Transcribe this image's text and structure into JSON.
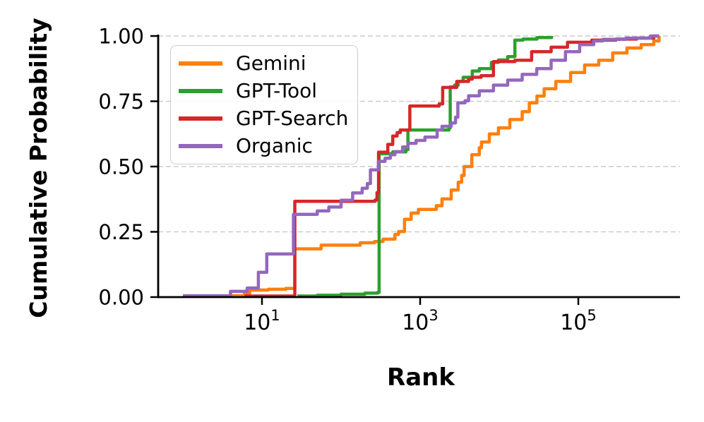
{
  "figure": {
    "background": "#ffffff"
  },
  "axes": {
    "xlabel": "Rank",
    "ylabel": "Cumulative Probability",
    "x_scale": "log",
    "y_ticks": [
      {
        "label": "0.00",
        "value": 0.0
      },
      {
        "label": "0.25",
        "value": 0.25
      },
      {
        "label": "0.50",
        "value": 0.5
      },
      {
        "label": "0.75",
        "value": 0.75
      },
      {
        "label": "1.00",
        "value": 1.0
      }
    ],
    "x_ticks": [
      {
        "base": "10",
        "exp": "1",
        "value": 10
      },
      {
        "base": "10",
        "exp": "3",
        "value": 1000
      },
      {
        "base": "10",
        "exp": "5",
        "value": 100000
      }
    ],
    "grid_color": "#cccccc",
    "spine_color": "#000000"
  },
  "legend": {
    "items": [
      {
        "label": "Gemini",
        "color": "#ff7f0e"
      },
      {
        "label": "GPT-Tool",
        "color": "#2ca02c"
      },
      {
        "label": "GPT-Search",
        "color": "#d62728"
      },
      {
        "label": "Organic",
        "color": "#9467bd"
      }
    ]
  },
  "chart_data": {
    "type": "line",
    "variant": "cdf-step",
    "title": "",
    "xlabel": "Rank",
    "ylabel": "Cumulative Probability",
    "x_scale": "log10",
    "x_range": [
      0.48,
      1900000
    ],
    "y_range": [
      0,
      1
    ],
    "grid": "horizontal-dashed",
    "legend_position": "upper-left",
    "series": [
      {
        "name": "Gemini",
        "color": "#ff7f0e",
        "points": [
          [
            4,
            0.005
          ],
          [
            6,
            0.014
          ],
          [
            7,
            0.027
          ],
          [
            12,
            0.03
          ],
          [
            20,
            0.033
          ],
          [
            26,
            0.185
          ],
          [
            56,
            0.199
          ],
          [
            175,
            0.208
          ],
          [
            265,
            0.213
          ],
          [
            340,
            0.222
          ],
          [
            480,
            0.24
          ],
          [
            533,
            0.251
          ],
          [
            635,
            0.298
          ],
          [
            770,
            0.322
          ],
          [
            950,
            0.336
          ],
          [
            1600,
            0.35
          ],
          [
            1890,
            0.376
          ],
          [
            2470,
            0.41
          ],
          [
            3030,
            0.44
          ],
          [
            3350,
            0.466
          ],
          [
            3600,
            0.5
          ],
          [
            4500,
            0.545
          ],
          [
            5600,
            0.572
          ],
          [
            5960,
            0.594
          ],
          [
            7500,
            0.625
          ],
          [
            9770,
            0.648
          ],
          [
            13600,
            0.68
          ],
          [
            19500,
            0.71
          ],
          [
            24000,
            0.744
          ],
          [
            30000,
            0.77
          ],
          [
            37000,
            0.798
          ],
          [
            52000,
            0.826
          ],
          [
            80000,
            0.86
          ],
          [
            120000,
            0.889
          ],
          [
            181000,
            0.907
          ],
          [
            272000,
            0.935
          ],
          [
            412000,
            0.954
          ],
          [
            624000,
            0.967
          ],
          [
            900000,
            0.981
          ],
          [
            1050000,
            1.0
          ]
        ]
      },
      {
        "name": "GPT-Tool",
        "color": "#2ca02c",
        "points": [
          [
            28,
            0.004
          ],
          [
            50,
            0.007
          ],
          [
            100,
            0.011
          ],
          [
            200,
            0.015
          ],
          [
            290,
            0.018
          ],
          [
            303,
            0.549
          ],
          [
            450,
            0.556
          ],
          [
            660,
            0.565
          ],
          [
            700,
            0.64
          ],
          [
            2320,
            0.648
          ],
          [
            2400,
            0.805
          ],
          [
            2730,
            0.812
          ],
          [
            3030,
            0.826
          ],
          [
            3500,
            0.842
          ],
          [
            4560,
            0.866
          ],
          [
            5600,
            0.875
          ],
          [
            7960,
            0.899
          ],
          [
            9770,
            0.908
          ],
          [
            12800,
            0.921
          ],
          [
            15800,
            0.984
          ],
          [
            20000,
            0.988
          ],
          [
            30000,
            0.994
          ],
          [
            46000,
            1.0
          ]
        ]
      },
      {
        "name": "GPT-Search",
        "color": "#d62728",
        "points": [
          [
            6,
            0.004
          ],
          [
            26,
            0.367
          ],
          [
            270,
            0.372
          ],
          [
            285,
            0.4
          ],
          [
            298,
            0.555
          ],
          [
            390,
            0.585
          ],
          [
            450,
            0.617
          ],
          [
            512,
            0.63
          ],
          [
            560,
            0.64
          ],
          [
            730,
            0.641
          ],
          [
            740,
            0.732
          ],
          [
            1740,
            0.74
          ],
          [
            1925,
            0.803
          ],
          [
            2900,
            0.826
          ],
          [
            4100,
            0.835
          ],
          [
            4560,
            0.842
          ],
          [
            5900,
            0.848
          ],
          [
            8450,
            0.902
          ],
          [
            15800,
            0.907
          ],
          [
            25700,
            0.94
          ],
          [
            45300,
            0.957
          ],
          [
            73000,
            0.976
          ],
          [
            148000,
            0.984
          ],
          [
            300000,
            0.988
          ],
          [
            550000,
            0.992
          ],
          [
            900000,
            1.0
          ],
          [
            1050000,
            1.0
          ]
        ]
      },
      {
        "name": "Organic",
        "color": "#9467bd",
        "points": [
          [
            1,
            0.005
          ],
          [
            4,
            0.022
          ],
          [
            6.5,
            0.035
          ],
          [
            9,
            0.095
          ],
          [
            11.5,
            0.165
          ],
          [
            25,
            0.317
          ],
          [
            50,
            0.33
          ],
          [
            70,
            0.345
          ],
          [
            100,
            0.371
          ],
          [
            140,
            0.399
          ],
          [
            185,
            0.417
          ],
          [
            215,
            0.435
          ],
          [
            235,
            0.487
          ],
          [
            297,
            0.52
          ],
          [
            360,
            0.532
          ],
          [
            420,
            0.545
          ],
          [
            480,
            0.557
          ],
          [
            600,
            0.575
          ],
          [
            700,
            0.589
          ],
          [
            890,
            0.6
          ],
          [
            1150,
            0.613
          ],
          [
            1640,
            0.64
          ],
          [
            1890,
            0.654
          ],
          [
            2470,
            0.667
          ],
          [
            2800,
            0.689
          ],
          [
            3000,
            0.744
          ],
          [
            3700,
            0.752
          ],
          [
            4100,
            0.771
          ],
          [
            5600,
            0.79
          ],
          [
            8450,
            0.812
          ],
          [
            12800,
            0.831
          ],
          [
            19500,
            0.853
          ],
          [
            29800,
            0.875
          ],
          [
            45300,
            0.907
          ],
          [
            68800,
            0.94
          ],
          [
            104000,
            0.967
          ],
          [
            157000,
            0.981
          ],
          [
            204500,
            0.987
          ],
          [
            400000,
            0.992
          ],
          [
            820000,
            1.0
          ],
          [
            1050000,
            1.0
          ]
        ]
      }
    ]
  }
}
